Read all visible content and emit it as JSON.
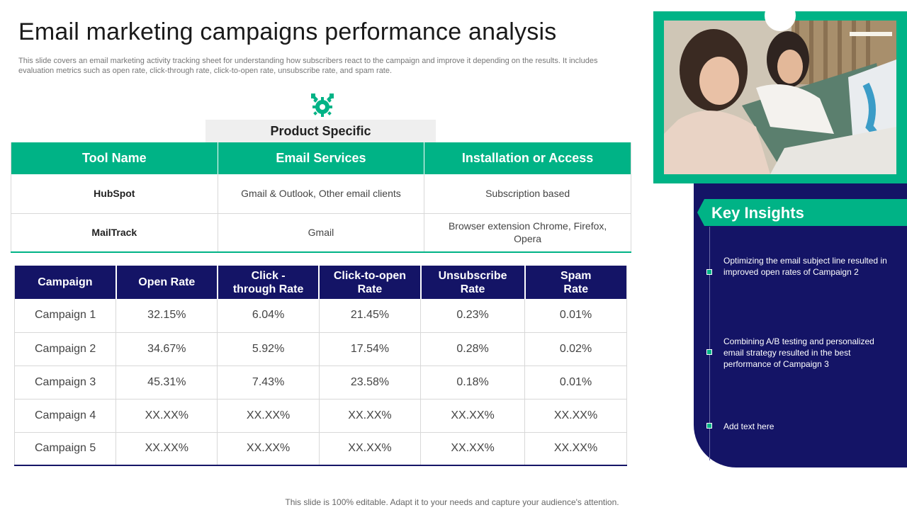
{
  "title": "Email marketing campaigns performance analysis",
  "subtitle": "This slide covers an email marketing activity tracking sheet for understanding how subscribers react to the campaign and improve it depending on the results. It includes evaluation metrics such as open rate, click-through rate, click-to-open rate, unsubscribe rate, and spam rate.",
  "icon": "gear-wrench-icon",
  "product_band": "Product Specific",
  "tools_table": {
    "headers": [
      "Tool Name",
      "Email Services",
      "Installation or Access"
    ],
    "rows": [
      [
        "HubSpot",
        "Gmail & Outlook, Other email clients",
        "Subscription based"
      ],
      [
        "MailTrack",
        "Gmail",
        "Browser extension Chrome, Firefox, Opera"
      ]
    ]
  },
  "campaign_table": {
    "headers": [
      "Campaign",
      "Open Rate",
      "Click -through Rate",
      "Click-to-open Rate",
      "Unsubscribe Rate",
      "Spam Rate"
    ],
    "rows": [
      [
        "Campaign 1",
        "32.15%",
        "6.04%",
        "21.45%",
        "0.23%",
        "0.01%"
      ],
      [
        "Campaign 2",
        "34.67%",
        "5.92%",
        "17.54%",
        "0.28%",
        "0.02%"
      ],
      [
        "Campaign 3",
        "45.31%",
        "7.43%",
        "23.58%",
        "0.18%",
        "0.01%"
      ],
      [
        "Campaign 4",
        "XX.XX%",
        "XX.XX%",
        "XX.XX%",
        "XX.XX%",
        "XX.XX%"
      ],
      [
        "Campaign 5",
        "XX.XX%",
        "XX.XX%",
        "XX.XX%",
        "XX.XX%",
        "XX.XX%"
      ]
    ]
  },
  "key_insights": {
    "title": "Key Insights",
    "items": [
      "Optimizing the email subject line resulted in improved  open rates of Campaign  2",
      "Combining  A/B testing and personalized email strategy resulted in the best performance  of Campaign  3",
      "Add text here"
    ]
  },
  "footer": "This slide is 100% editable. Adapt it to your needs and capture your audience's attention.",
  "colors": {
    "accent": "#00b386",
    "navy": "#141466"
  }
}
